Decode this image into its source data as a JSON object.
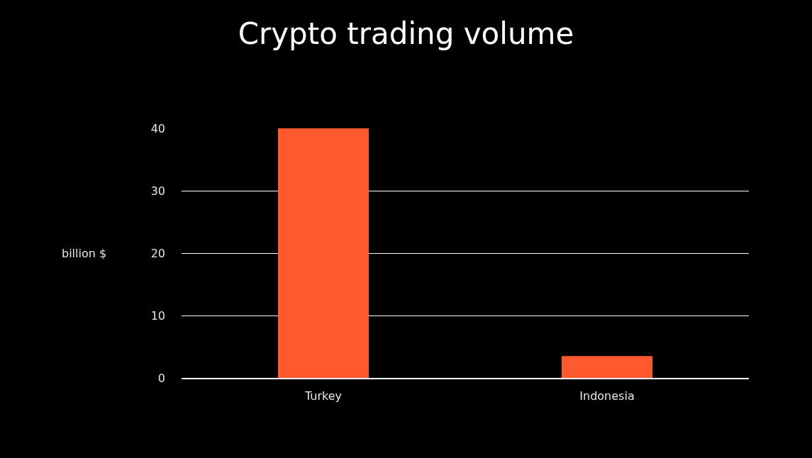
{
  "chart_data": {
    "type": "bar",
    "title": "Crypto trading volume",
    "ylabel": "billion $",
    "categories": [
      "Turkey",
      "Indonesia"
    ],
    "values": [
      40,
      3.5
    ],
    "color": "#ff5a2f",
    "ylim": [
      0,
      40
    ],
    "yticks": [
      0,
      10,
      20,
      30,
      40
    ],
    "grid": "y",
    "legend": false
  }
}
